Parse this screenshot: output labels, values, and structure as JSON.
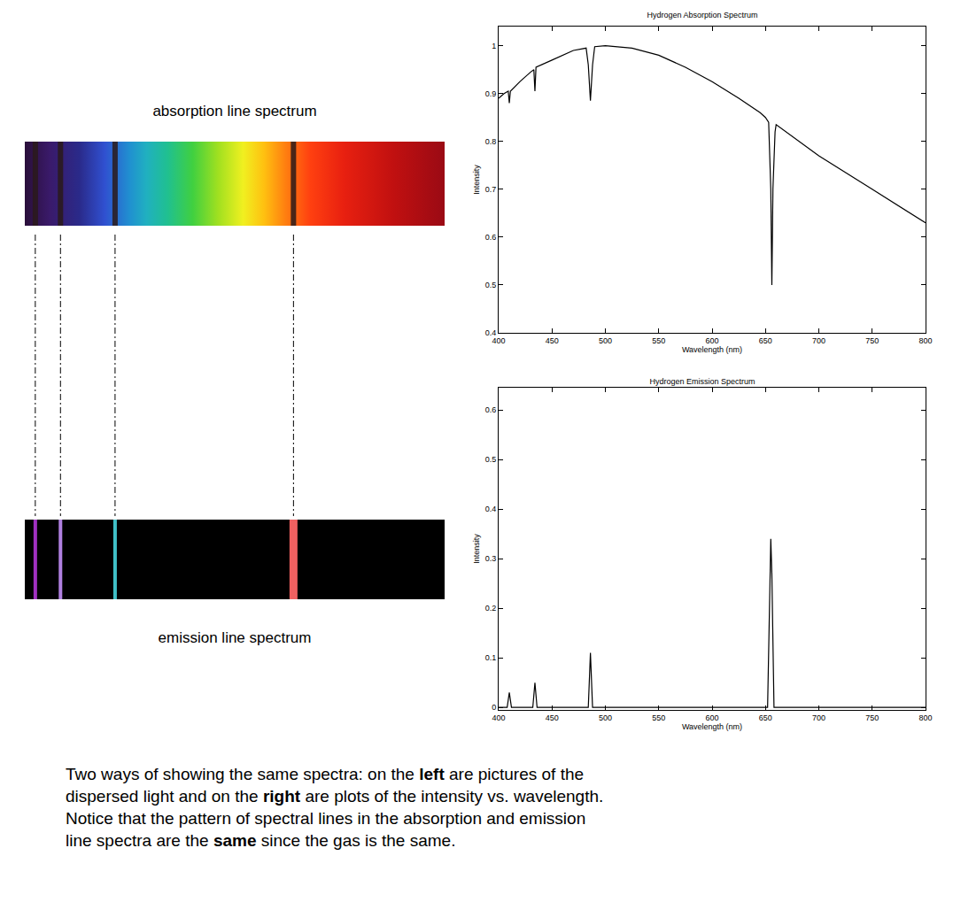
{
  "chart_data": [
    {
      "type": "line",
      "title": "Hydrogen Absorption Spectrum",
      "x_label": "Wavelength (nm)",
      "y_label": "Intensity",
      "color": "#000000",
      "x": [
        400,
        405,
        409,
        410,
        411,
        420,
        430,
        433,
        434,
        435,
        450,
        470,
        482,
        484,
        486,
        488,
        490,
        500,
        525,
        550,
        575,
        600,
        625,
        645,
        650,
        653,
        655,
        656,
        657,
        659,
        660,
        700,
        750,
        800
      ],
      "values": [
        0.89,
        0.9,
        0.905,
        0.88,
        0.905,
        0.925,
        0.945,
        0.95,
        0.905,
        0.955,
        0.97,
        0.99,
        0.995,
        0.96,
        0.885,
        0.96,
        0.998,
        1.0,
        0.995,
        0.98,
        0.955,
        0.925,
        0.89,
        0.86,
        0.85,
        0.84,
        0.7,
        0.5,
        0.7,
        0.82,
        0.835,
        0.77,
        0.7,
        0.63
      ],
      "xlim": [
        400,
        800
      ],
      "xticks": [
        400,
        450,
        500,
        550,
        600,
        650,
        700,
        750,
        800
      ],
      "ylim": [
        0.4,
        1.04
      ],
      "yticks": [
        0.4,
        0.5,
        0.6,
        0.7,
        0.8,
        0.9,
        1
      ],
      "grid": false
    },
    {
      "type": "line",
      "title": "Hydrogen Emission Spectrum",
      "x_label": "Wavelength (nm)",
      "y_label": "Intensity",
      "color": "#000000",
      "x": [
        400,
        408,
        410,
        412,
        432,
        434,
        436,
        484,
        486,
        488,
        652,
        655,
        656,
        658,
        800
      ],
      "values": [
        0,
        0,
        0.03,
        0,
        0,
        0.05,
        0,
        0,
        0.11,
        0,
        0,
        0.34,
        0.27,
        0,
        0
      ],
      "xlim": [
        400,
        800
      ],
      "xticks": [
        400,
        450,
        500,
        550,
        600,
        650,
        700,
        750,
        800
      ],
      "ylim": [
        -0.005,
        0.645
      ],
      "yticks": [
        0,
        0.1,
        0.2,
        0.3,
        0.4,
        0.5,
        0.6
      ],
      "grid": false
    }
  ],
  "spectrum_pictures": {
    "xlim": [
      400,
      800
    ],
    "absorption": {
      "label": "absorption line spectrum",
      "lines": [
        410,
        434,
        486,
        656
      ],
      "color": "#2a1a1a"
    },
    "emission": {
      "label": "emission line spectrum",
      "lines": [
        410,
        434,
        486,
        656
      ],
      "colors": [
        "#a030c0",
        "#b080e0",
        "#40c0c8",
        "#f06060"
      ]
    }
  },
  "caption": [
    [
      {
        "text": "Two ways of showing the same spectra: on the "
      },
      {
        "text": "left",
        "bold": true
      },
      {
        "text": " are pictures of the"
      }
    ],
    [
      {
        "text": "dispersed light and on the "
      },
      {
        "text": "right",
        "bold": true
      },
      {
        "text": " are plots of the intensity vs. wavelength."
      }
    ],
    [
      {
        "text": "Notice that the pattern of spectral lines in the absorption and emission"
      }
    ],
    [
      {
        "text": "line spectra are the "
      },
      {
        "text": "same",
        "bold": true
      },
      {
        "text": " since the gas is the same."
      }
    ]
  ]
}
